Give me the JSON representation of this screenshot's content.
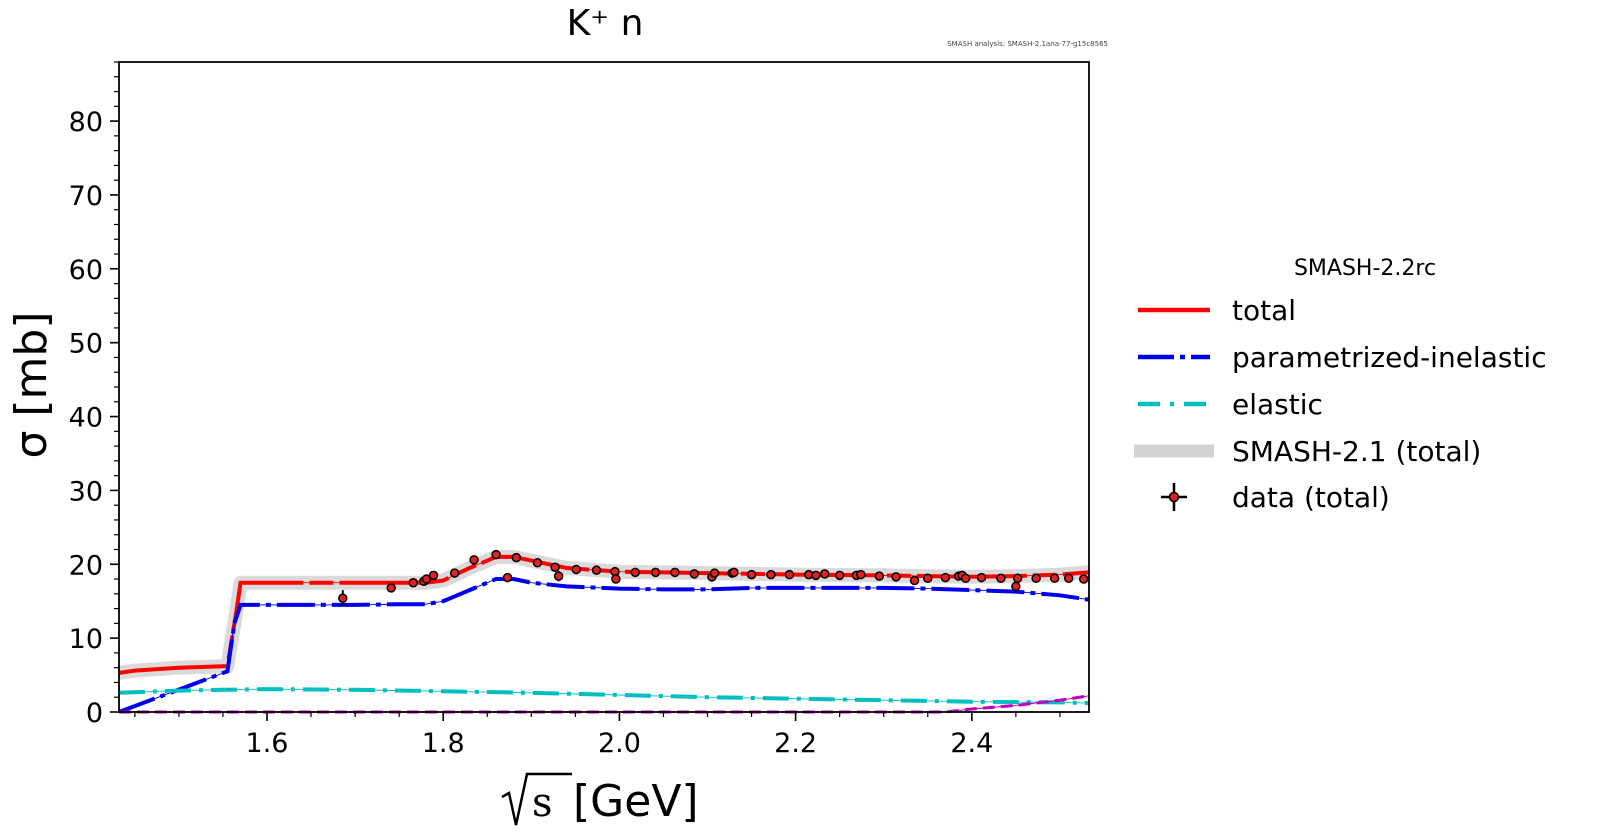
{
  "chart_data": {
    "type": "line",
    "title": "K⁺ n",
    "watermark": "SMASH analysis: SMASH-2.1ana-77-g15c8565",
    "xlabel_root": "s",
    "xlabel_unit": "[GeV]",
    "ylabel": "σ [mb]",
    "xlim": [
      1.432,
      2.533
    ],
    "ylim": [
      0,
      88
    ],
    "xticks": [
      1.6,
      1.8,
      2.0,
      2.2,
      2.4
    ],
    "xtick_labels": [
      "1.6",
      "1.8",
      "2.0",
      "2.2",
      "2.4"
    ],
    "yticks": [
      0,
      10,
      20,
      30,
      40,
      50,
      60,
      70,
      80
    ],
    "ytick_labels": [
      "0",
      "10",
      "20",
      "30",
      "40",
      "50",
      "60",
      "70",
      "80"
    ],
    "legend": {
      "title": "SMASH-2.2rc",
      "placement": "outside-right",
      "entries": [
        "total",
        "parametrized-inelastic",
        "elastic",
        "SMASH-2.1 (total)",
        "data (total)"
      ]
    },
    "colors": {
      "total": "#ff0000",
      "inelastic": "#0000ee",
      "elastic": "#00bfbf",
      "old_total": "#d3d3d3",
      "magenta": "#bf00bf",
      "data_fill": "#dd2222"
    },
    "series": [
      {
        "name": "total",
        "x": [
          1.432,
          1.45,
          1.5,
          1.55,
          1.555,
          1.565,
          1.57,
          1.6,
          1.65,
          1.7,
          1.75,
          1.78,
          1.8,
          1.83,
          1.86,
          1.88,
          1.9,
          1.94,
          2.0,
          2.05,
          2.1,
          2.2,
          2.3,
          2.35,
          2.4,
          2.45,
          2.5,
          2.533
        ],
        "y": [
          5.3,
          5.6,
          6.0,
          6.2,
          6.2,
          13.5,
          17.5,
          17.5,
          17.5,
          17.5,
          17.5,
          17.5,
          17.8,
          19.5,
          21.0,
          21.0,
          20.5,
          19.5,
          19.0,
          18.9,
          18.8,
          18.6,
          18.5,
          18.4,
          18.3,
          18.4,
          18.6,
          18.9
        ]
      },
      {
        "name": "parametrized-inelastic",
        "x": [
          1.432,
          1.555,
          1.563,
          1.57,
          1.6,
          1.65,
          1.7,
          1.75,
          1.78,
          1.8,
          1.83,
          1.86,
          1.88,
          1.9,
          1.94,
          2.0,
          2.05,
          2.1,
          2.15,
          2.2,
          2.25,
          2.3,
          2.35,
          2.4,
          2.45,
          2.5,
          2.533
        ],
        "y": [
          0,
          5.5,
          12.0,
          14.5,
          14.5,
          14.5,
          14.5,
          14.6,
          14.6,
          15.0,
          16.5,
          18.0,
          18.0,
          17.5,
          17.0,
          16.7,
          16.6,
          16.6,
          16.8,
          16.8,
          16.8,
          16.8,
          16.7,
          16.5,
          16.3,
          15.8,
          15.2
        ]
      },
      {
        "name": "elastic",
        "x": [
          1.432,
          1.5,
          1.55,
          1.6,
          1.7,
          1.8,
          1.9,
          2.0,
          2.1,
          2.2,
          2.3,
          2.4,
          2.5,
          2.533
        ],
        "y": [
          2.6,
          2.9,
          3.0,
          3.1,
          3.0,
          2.8,
          2.6,
          2.3,
          2.0,
          1.8,
          1.6,
          1.4,
          1.3,
          1.2
        ]
      },
      {
        "name": "",
        "x": [
          1.432,
          2.37,
          2.4,
          2.45,
          2.5,
          2.533
        ],
        "y": [
          0,
          0,
          0.4,
          0.9,
          1.6,
          2.2
        ]
      },
      {
        "name": "SMASH-2.1 (total)",
        "x": [
          1.432,
          1.45,
          1.5,
          1.55,
          1.555,
          1.565,
          1.57,
          1.6,
          1.65,
          1.7,
          1.75,
          1.78,
          1.8,
          1.83,
          1.86,
          1.88,
          1.9,
          1.94,
          2.0,
          2.05,
          2.1,
          2.2,
          2.3,
          2.35,
          2.4,
          2.45,
          2.5,
          2.533
        ],
        "y": [
          5.3,
          5.6,
          6.0,
          6.2,
          6.2,
          13.5,
          17.5,
          17.5,
          17.5,
          17.5,
          17.5,
          17.5,
          17.8,
          19.5,
          21.0,
          21.0,
          20.5,
          19.5,
          19.0,
          18.9,
          18.8,
          18.6,
          18.5,
          18.4,
          18.3,
          18.4,
          18.6,
          18.9
        ]
      }
    ],
    "data_points": {
      "name": "data (total)",
      "x": [
        1.686,
        1.741,
        1.766,
        1.778,
        1.781,
        1.789,
        1.813,
        1.835,
        1.86,
        1.873,
        1.883,
        1.907,
        1.927,
        1.931,
        1.951,
        1.974,
        1.995,
        1.996,
        2.018,
        2.041,
        2.063,
        2.085,
        2.105,
        2.108,
        2.128,
        2.13,
        2.15,
        2.172,
        2.193,
        2.215,
        2.223,
        2.233,
        2.25,
        2.269,
        2.274,
        2.295,
        2.314,
        2.335,
        2.35,
        2.37,
        2.385,
        2.389,
        2.393,
        2.411,
        2.433,
        2.45,
        2.452,
        2.473,
        2.494,
        2.51,
        2.527
      ],
      "y": [
        15.4,
        16.8,
        17.5,
        17.7,
        18.0,
        18.5,
        18.8,
        20.6,
        21.3,
        18.2,
        20.9,
        20.2,
        19.6,
        18.4,
        19.3,
        19.2,
        19.0,
        18.0,
        18.9,
        18.9,
        18.9,
        18.7,
        18.3,
        18.8,
        18.8,
        18.9,
        18.6,
        18.6,
        18.6,
        18.6,
        18.5,
        18.7,
        18.5,
        18.5,
        18.6,
        18.4,
        18.3,
        17.8,
        18.1,
        18.2,
        18.4,
        18.5,
        18.1,
        18.2,
        18.1,
        17.0,
        18.1,
        18.1,
        18.1,
        18.1,
        18.0
      ],
      "yerr": [
        1.1,
        0.5,
        0.5,
        0.6,
        0.5,
        0.5,
        0.4,
        0.4,
        0.4,
        0.6,
        0.4,
        0.4,
        0.4,
        0.7,
        0.4,
        0.4,
        0.4,
        0.6,
        0.4,
        0.4,
        0.4,
        0.4,
        0.6,
        0.4,
        0.4,
        0.4,
        0.4,
        0.4,
        0.4,
        0.4,
        0.4,
        0.4,
        0.4,
        0.4,
        0.4,
        0.4,
        0.4,
        0.6,
        0.4,
        0.4,
        0.4,
        0.4,
        0.4,
        0.4,
        0.4,
        0.7,
        0.4,
        0.4,
        0.4,
        0.4,
        0.4
      ]
    }
  }
}
